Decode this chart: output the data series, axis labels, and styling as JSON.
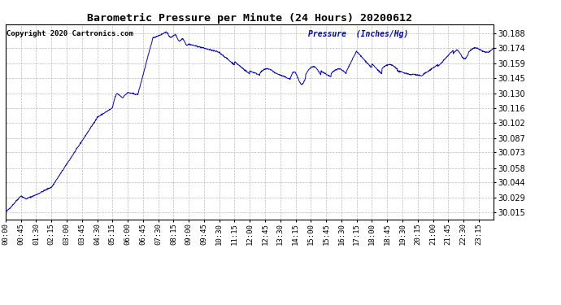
{
  "title": "Barometric Pressure per Minute (24 Hours) 20200612",
  "copyright_text": "Copyright 2020 Cartronics.com",
  "ylabel": "Pressure  (Inches/Hg)",
  "background_color": "#ffffff",
  "line_color": "#0000cc",
  "title_color": "#000000",
  "copyright_color": "#000000",
  "ylabel_color": "#0000cc",
  "grid_color": "#bbbbbb",
  "yticks": [
    30.015,
    30.029,
    30.044,
    30.058,
    30.073,
    30.087,
    30.102,
    30.116,
    30.13,
    30.145,
    30.159,
    30.174,
    30.188
  ],
  "ylim": [
    30.008,
    30.197
  ],
  "xtick_labels": [
    "00:00",
    "00:45",
    "01:30",
    "02:15",
    "03:00",
    "03:45",
    "04:30",
    "05:15",
    "06:00",
    "06:45",
    "07:30",
    "08:15",
    "09:00",
    "09:45",
    "10:30",
    "11:15",
    "12:00",
    "12:45",
    "13:30",
    "14:15",
    "15:00",
    "15:45",
    "16:30",
    "17:15",
    "18:00",
    "18:45",
    "19:30",
    "20:15",
    "21:00",
    "21:45",
    "22:30",
    "23:15"
  ]
}
